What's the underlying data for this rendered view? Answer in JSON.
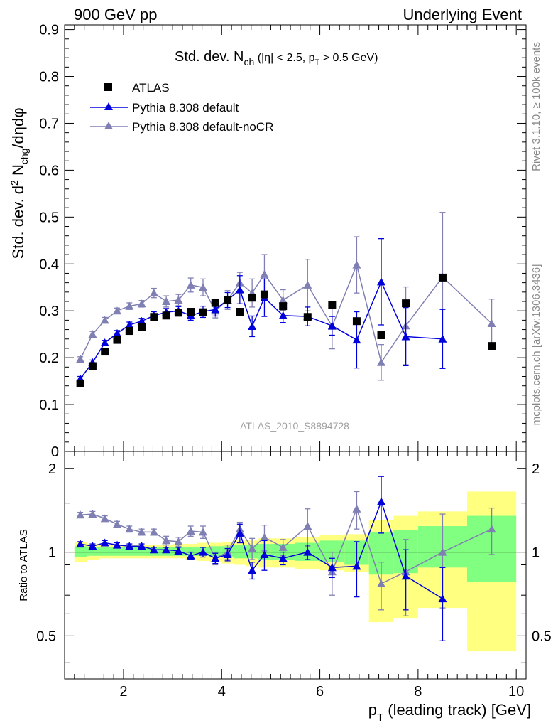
{
  "header": {
    "left": "900 GeV pp",
    "right": "Underlying Event"
  },
  "side_labels": {
    "rivet": "Rivet 3.1.10, ≥ 100k events",
    "mcplots": "mcplots.cern.ch [arXiv:1306.3436]"
  },
  "watermark": "ATLAS_2010_S8894728",
  "colors": {
    "data": "#000000",
    "default": "#0000dd",
    "nocr": "#7f7fb3",
    "band_yellow": "#ffff80",
    "band_green": "#80ff80"
  },
  "chart_data": [
    {
      "type": "scatter",
      "title": "Std. dev. N_ch (|η| < 2.5, p_T > 0.5 GeV)",
      "ylabel": "Std. dev. d² N_chg/dηdφ",
      "xlim": [
        0.8,
        10.2
      ],
      "ylim": [
        0,
        0.91
      ],
      "yticks": [
        0,
        0.1,
        0.2,
        0.3,
        0.4,
        0.5,
        0.6,
        0.7,
        0.8,
        0.9
      ],
      "ytick_labels": [
        "0",
        "0.1",
        "0.2",
        "0.3",
        "0.4",
        "0.5",
        "0.6",
        "0.7",
        "0.8",
        "0.9"
      ],
      "legend": [
        "ATLAS",
        "Pythia 8.308 default",
        "Pythia 8.308 default-noCR"
      ],
      "x": [
        1.12,
        1.37,
        1.62,
        1.87,
        2.12,
        2.37,
        2.62,
        2.87,
        3.12,
        3.37,
        3.62,
        3.87,
        4.12,
        4.37,
        4.62,
        4.87,
        5.25,
        5.75,
        6.25,
        6.75,
        7.25,
        7.75,
        8.5,
        9.5
      ],
      "series": [
        {
          "name": "ATLAS",
          "values": [
            0.145,
            0.182,
            0.213,
            0.238,
            0.257,
            0.266,
            0.287,
            0.29,
            0.296,
            0.298,
            0.297,
            0.317,
            0.323,
            0.298,
            0.328,
            0.335,
            0.31,
            0.287,
            0.313,
            0.278,
            0.248,
            0.316,
            0.371,
            0.225
          ]
        },
        {
          "name": "Pythia 8.308 default",
          "values": [
            0.155,
            0.19,
            0.232,
            0.252,
            0.27,
            0.278,
            0.29,
            0.297,
            0.3,
            0.29,
            0.298,
            0.303,
            0.323,
            0.345,
            0.267,
            0.328,
            0.29,
            0.288,
            0.268,
            0.238,
            0.362,
            0.245,
            0.24,
            null
          ],
          "errors": [
            0.005,
            0.005,
            0.005,
            0.006,
            0.006,
            0.006,
            0.008,
            0.008,
            0.009,
            0.01,
            0.012,
            0.014,
            0.016,
            0.03,
            0.022,
            0.04,
            0.015,
            0.02,
            0.02,
            0.06,
            0.092,
            0.062,
            0.063,
            null
          ]
        },
        {
          "name": "Pythia 8.308 default-noCR",
          "values": [
            0.197,
            0.25,
            0.28,
            0.3,
            0.31,
            0.315,
            0.338,
            0.32,
            0.323,
            0.355,
            0.35,
            0.3,
            0.323,
            0.36,
            0.338,
            0.378,
            0.323,
            0.355,
            0.267,
            0.398,
            0.19,
            0.268,
            0.372,
            0.273
          ],
          "errors": [
            0.005,
            0.006,
            0.006,
            0.006,
            0.007,
            0.007,
            0.01,
            0.012,
            0.012,
            0.015,
            0.018,
            0.015,
            0.02,
            0.022,
            0.03,
            0.042,
            0.022,
            0.055,
            0.048,
            0.06,
            0.038,
            0.083,
            0.138,
            0.052
          ]
        }
      ]
    },
    {
      "type": "scatter",
      "ylabel": "Ratio to ATLAS",
      "xlabel": "p_T (leading track) [GeV]",
      "xlim": [
        0.8,
        10.2
      ],
      "ylim": [
        0.35,
        2.3
      ],
      "yticks": [
        0.5,
        1,
        2
      ],
      "ytick_labels": [
        "0.5",
        "1",
        "2"
      ],
      "xticks": [
        2,
        4,
        6,
        8,
        10
      ],
      "xtick_labels": [
        "2",
        "4",
        "6",
        "8",
        "10"
      ],
      "bands": {
        "edges": [
          1.0,
          1.25,
          1.5,
          1.75,
          2.0,
          2.25,
          2.5,
          2.75,
          3.0,
          3.25,
          3.5,
          3.75,
          4.0,
          4.25,
          4.5,
          4.75,
          5.0,
          5.5,
          6.0,
          6.5,
          7.0,
          7.5,
          8.0,
          9.0,
          10.0
        ],
        "yellow": [
          [
            0.92,
            1.09
          ],
          [
            0.94,
            1.07
          ],
          [
            0.95,
            1.06
          ],
          [
            0.95,
            1.06
          ],
          [
            0.95,
            1.06
          ],
          [
            0.95,
            1.06
          ],
          [
            0.95,
            1.06
          ],
          [
            0.95,
            1.06
          ],
          [
            0.95,
            1.07
          ],
          [
            0.94,
            1.07
          ],
          [
            0.93,
            1.08
          ],
          [
            0.92,
            1.08
          ],
          [
            0.91,
            1.09
          ],
          [
            0.9,
            1.1
          ],
          [
            0.89,
            1.1
          ],
          [
            0.88,
            1.12
          ],
          [
            0.88,
            1.12
          ],
          [
            0.87,
            1.13
          ],
          [
            0.86,
            1.15
          ],
          [
            0.85,
            1.16
          ],
          [
            0.56,
            1.3
          ],
          [
            0.58,
            1.35
          ],
          [
            0.63,
            1.4
          ],
          [
            0.44,
            1.65
          ]
        ],
        "green": [
          [
            0.96,
            1.05
          ],
          [
            0.97,
            1.04
          ],
          [
            0.97,
            1.04
          ],
          [
            0.97,
            1.04
          ],
          [
            0.97,
            1.04
          ],
          [
            0.97,
            1.04
          ],
          [
            0.97,
            1.04
          ],
          [
            0.97,
            1.04
          ],
          [
            0.97,
            1.04
          ],
          [
            0.97,
            1.04
          ],
          [
            0.97,
            1.04
          ],
          [
            0.96,
            1.05
          ],
          [
            0.96,
            1.05
          ],
          [
            0.95,
            1.06
          ],
          [
            0.95,
            1.06
          ],
          [
            0.94,
            1.07
          ],
          [
            0.94,
            1.07
          ],
          [
            0.93,
            1.08
          ],
          [
            0.92,
            1.1
          ],
          [
            0.9,
            1.1
          ],
          [
            0.83,
            1.18
          ],
          [
            0.84,
            1.2
          ],
          [
            0.88,
            1.24
          ],
          [
            0.78,
            1.35
          ]
        ]
      },
      "series": [
        {
          "name": "Pythia 8.308 default",
          "values": [
            1.07,
            1.05,
            1.08,
            1.06,
            1.05,
            1.05,
            1.02,
            1.02,
            1.01,
            0.97,
            1.0,
            0.95,
            0.98,
            1.17,
            0.86,
            0.98,
            0.95,
            1.0,
            0.88,
            0.89,
            1.52,
            0.82,
            0.68,
            null
          ],
          "errors": [
            0.02,
            0.02,
            0.02,
            0.02,
            0.02,
            0.02,
            0.02,
            0.02,
            0.03,
            0.03,
            0.04,
            0.04,
            0.05,
            0.09,
            0.06,
            0.12,
            0.05,
            0.06,
            0.07,
            0.2,
            0.35,
            0.2,
            0.2,
            null
          ]
        },
        {
          "name": "Pythia 8.308 default-noCR",
          "values": [
            1.36,
            1.37,
            1.32,
            1.26,
            1.21,
            1.18,
            1.18,
            1.1,
            1.09,
            1.19,
            1.18,
            0.95,
            1.0,
            1.21,
            1.03,
            1.13,
            1.04,
            1.24,
            0.85,
            1.43,
            0.77,
            0.85,
            1.0,
            1.21
          ],
          "errors": [
            0.03,
            0.03,
            0.03,
            0.03,
            0.03,
            0.03,
            0.03,
            0.04,
            0.04,
            0.05,
            0.06,
            0.05,
            0.06,
            0.07,
            0.09,
            0.12,
            0.07,
            0.19,
            0.15,
            0.22,
            0.15,
            0.26,
            0.37,
            0.23
          ]
        }
      ]
    }
  ]
}
